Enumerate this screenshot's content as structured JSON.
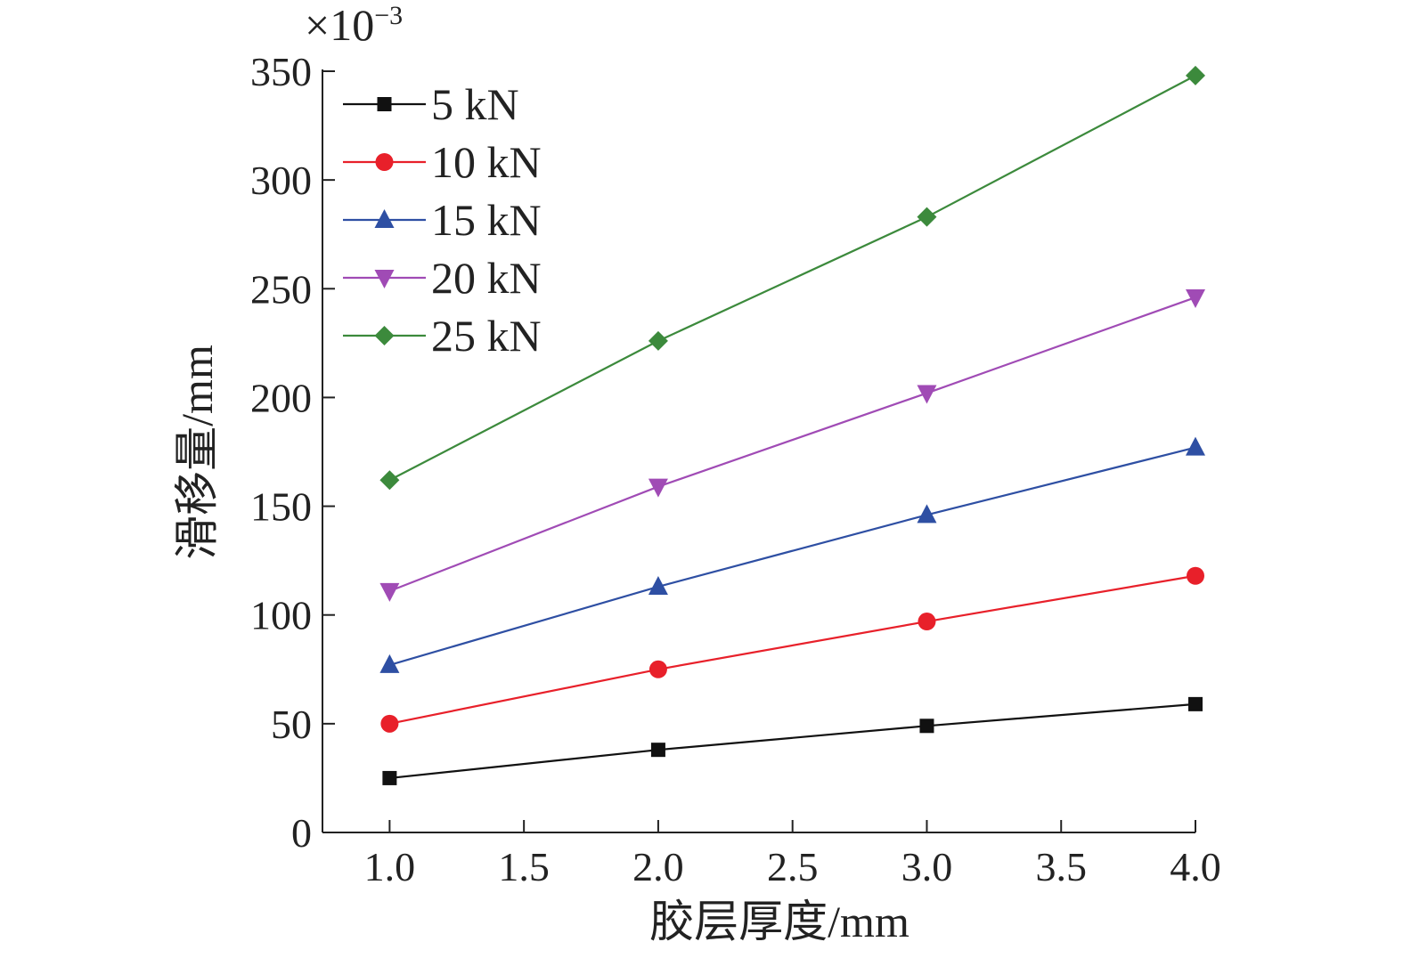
{
  "chart_data": {
    "type": "line",
    "title": "",
    "xlabel": "胶层厚度/mm",
    "ylabel": "滑移量/mm",
    "y_multiplier": "×10",
    "y_multiplier_exp": "−3",
    "xlim": [
      0.75,
      4.0
    ],
    "ylim": [
      0,
      350
    ],
    "xticks": [
      "1.0",
      "1.5",
      "2.0",
      "2.5",
      "3.0",
      "3.5",
      "4.0"
    ],
    "yticks": [
      "0",
      "50",
      "100",
      "150",
      "200",
      "250",
      "300",
      "350"
    ],
    "legend_position": "top-left",
    "x": [
      1.0,
      2.0,
      3.0,
      4.0
    ],
    "series": [
      {
        "name": "5 kN",
        "color": "#111111",
        "marker": "square",
        "values": [
          25,
          38,
          49,
          59
        ]
      },
      {
        "name": "10 kN",
        "color": "#e8202a",
        "marker": "circle",
        "values": [
          50,
          75,
          97,
          118
        ]
      },
      {
        "name": "15 kN",
        "color": "#2e4fa3",
        "marker": "triangle-up",
        "values": [
          77,
          113,
          146,
          177
        ]
      },
      {
        "name": "20 kN",
        "color": "#a04bb5",
        "marker": "triangle-down",
        "values": [
          111,
          159,
          202,
          246
        ]
      },
      {
        "name": "25 kN",
        "color": "#3c8a3c",
        "marker": "diamond",
        "values": [
          162,
          226,
          283,
          348
        ]
      }
    ]
  }
}
